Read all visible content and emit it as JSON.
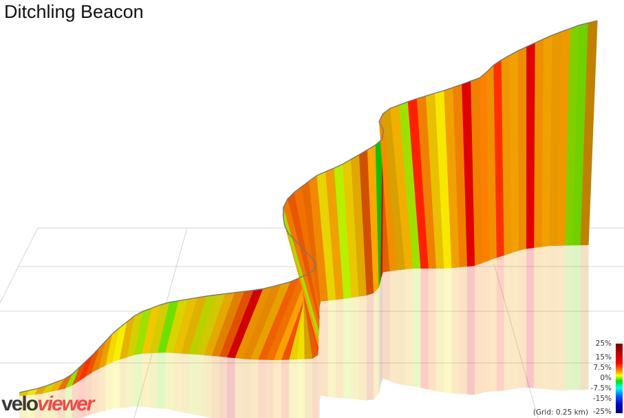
{
  "header": {
    "title": "Ditchling Beacon"
  },
  "legend": {
    "labels": [
      "25%",
      "15%",
      "7.5%",
      "0%",
      "-7.5%",
      "-15%",
      "-25%"
    ],
    "grid_note": "(Grid: 0.25 km)"
  },
  "logo": {
    "part1": "velo",
    "part2": "viewer"
  },
  "colors": {
    "grid": "#d4d4d4",
    "outline": "#777777",
    "background": "#ffffff"
  },
  "chart_data": {
    "type": "area",
    "title": "Ditchling Beacon",
    "subtitle": "3D gradient-colored elevation profile",
    "xlabel": "",
    "ylabel": "",
    "grid": true,
    "grid_spacing_km": 0.25,
    "legend_position": "bottom-right",
    "color_scale": {
      "label_values": [
        25,
        15,
        7.5,
        0,
        -7.5,
        -15,
        -25
      ],
      "unit": "%",
      "colors": [
        "#7a0000",
        "#ff0000",
        "#ff8000",
        "#ffff00",
        "#00e000",
        "#00ffff",
        "#0000ff",
        "#00007a"
      ]
    },
    "top_curve": [
      [
        28,
        570
      ],
      [
        60,
        563
      ],
      [
        100,
        548
      ],
      [
        135,
        515
      ],
      [
        165,
        483
      ],
      [
        200,
        455
      ],
      [
        240,
        440
      ],
      [
        300,
        430
      ],
      [
        380,
        420
      ],
      [
        420,
        410
      ],
      [
        455,
        395
      ],
      [
        462,
        385
      ],
      [
        440,
        360
      ],
      [
        415,
        335
      ],
      [
        410,
        305
      ],
      [
        420,
        285
      ],
      [
        460,
        255
      ],
      [
        495,
        240
      ],
      [
        530,
        220
      ],
      [
        555,
        205
      ],
      [
        558,
        190
      ],
      [
        550,
        175
      ],
      [
        560,
        160
      ],
      [
        600,
        145
      ],
      [
        650,
        130
      ],
      [
        700,
        112
      ],
      [
        720,
        92
      ],
      [
        750,
        75
      ],
      [
        800,
        52
      ],
      [
        840,
        37
      ],
      [
        868,
        30
      ]
    ],
    "bottom_curve": [
      [
        28,
        575
      ],
      [
        60,
        572
      ],
      [
        100,
        563
      ],
      [
        135,
        540
      ],
      [
        165,
        525
      ],
      [
        200,
        514
      ],
      [
        240,
        512
      ],
      [
        300,
        516
      ],
      [
        360,
        522
      ],
      [
        400,
        523
      ],
      [
        430,
        522
      ],
      [
        455,
        521
      ],
      [
        462,
        518
      ],
      [
        464,
        470
      ],
      [
        464,
        438
      ],
      [
        500,
        434
      ],
      [
        540,
        428
      ],
      [
        550,
        420
      ],
      [
        556,
        395
      ],
      [
        600,
        390
      ],
      [
        650,
        390
      ],
      [
        690,
        386
      ],
      [
        720,
        375
      ],
      [
        760,
        362
      ],
      [
        800,
        357
      ],
      [
        855,
        356
      ]
    ],
    "strip_colors": [
      "#e7c400",
      "#f4e400",
      "#e8a800",
      "#d8d000",
      "#f0b000",
      "#e87000",
      "#9be000",
      "#e05800",
      "#ff3000",
      "#e85500",
      "#f08000",
      "#e8a000",
      "#f5d800",
      "#f4f000",
      "#e8b000",
      "#d4d000",
      "#9ee000",
      "#f0c800",
      "#d2cc00",
      "#6ee000",
      "#d8d400",
      "#e8c000",
      "#e0b000",
      "#bcd000",
      "#d0c800",
      "#e4a800",
      "#e08000",
      "#e05000",
      "#d00000",
      "#e89000",
      "#e48800",
      "#e8a000",
      "#ee6000",
      "#f07000",
      "#ffa000",
      "#f05000",
      "#e8d000",
      "#f0e000",
      "#d8a000",
      "#e06000",
      "#ff4000",
      "#e8a400",
      "#a8e000",
      "#f07800",
      "#e85800",
      "#f27000",
      "#e86800",
      "#f08800",
      "#e8d400",
      "#f0a000",
      "#b8f000",
      "#e8c800",
      "#e0a800",
      "#d05000",
      "#ffa800",
      "#10c000",
      "#e00000",
      "#e06000",
      "#f09000",
      "#d8a000",
      "#f0b000",
      "#a0e000",
      "#ff2000",
      "#f08000",
      "#e8c000",
      "#f8e800",
      "#f0a000",
      "#f08000",
      "#e00000",
      "#f08000",
      "#ff8000",
      "#f09000",
      "#ff3000",
      "#f09800",
      "#f0a000",
      "#f08c00",
      "#e00000",
      "#f09000",
      "#f0a000",
      "#e89800",
      "#f09800",
      "#80d000",
      "#70d000",
      "#c08000"
    ]
  }
}
